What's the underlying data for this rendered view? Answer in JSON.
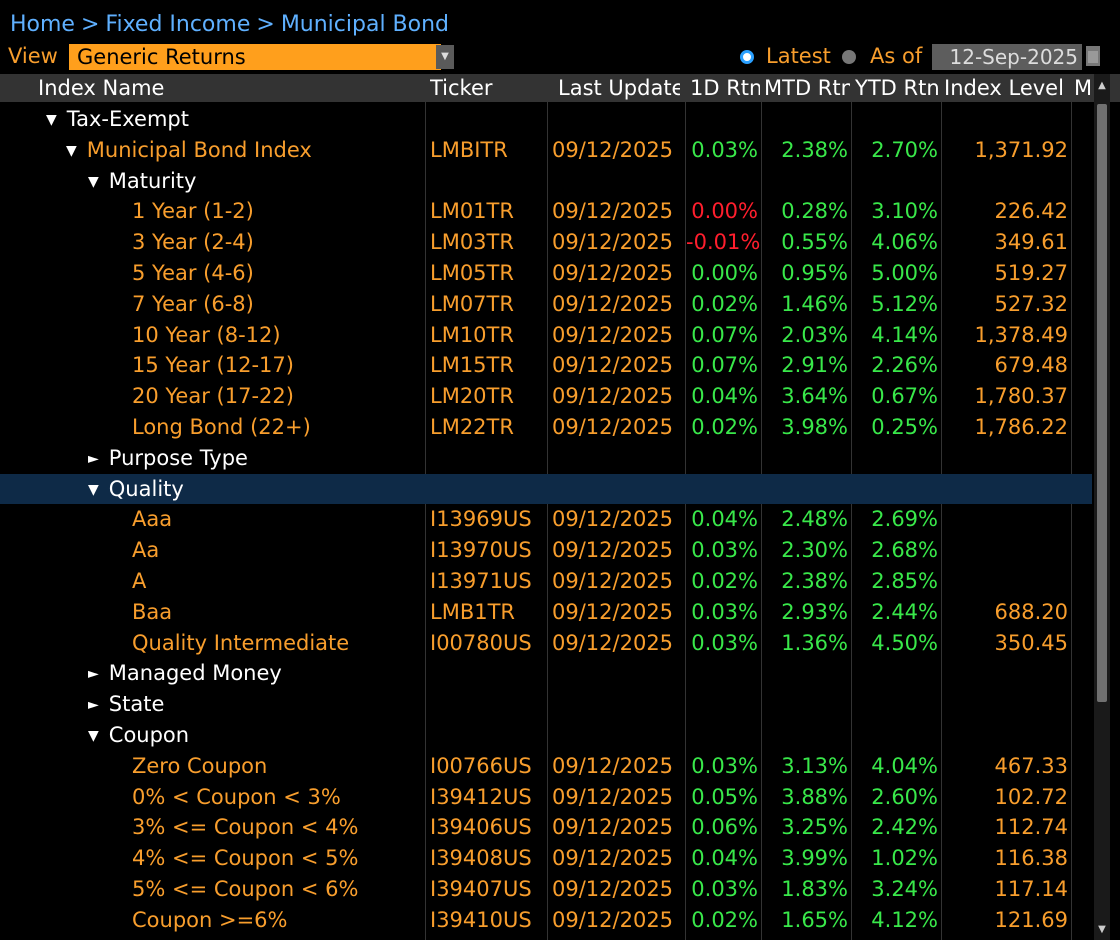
{
  "breadcrumb": {
    "home": "Home",
    "fixed_income": "Fixed Income",
    "municipal_bond": "Municipal Bond",
    "sep": ">"
  },
  "view": {
    "label": "View",
    "value": "Generic Returns",
    "latest_label": "Latest",
    "asof_label": "As of",
    "asof_date": "12-Sep-2025",
    "selected": "Latest"
  },
  "columns": [
    "Index Name",
    "Ticker",
    "Last Update",
    "1D Rtn",
    "MTD Rtn",
    "YTD Rtn",
    "Index Level",
    "M"
  ],
  "rows": [
    {
      "name": "Tax-Exempt",
      "tree": "expanded",
      "ticker": "",
      "date": "",
      "d1": "",
      "mtd": "",
      "ytd": "",
      "level": ""
    },
    {
      "name": "Municipal Bond Index",
      "tree": "expanded",
      "ticker": "LMBITR",
      "date": "09/12/2025",
      "d1": "0.03%",
      "mtd": "2.38%",
      "ytd": "2.70%",
      "level": "1,371.92"
    },
    {
      "name": "Maturity",
      "tree": "expanded",
      "ticker": "",
      "date": "",
      "d1": "",
      "mtd": "",
      "ytd": "",
      "level": ""
    },
    {
      "name": "1 Year (1-2)",
      "tree": "",
      "ticker": "LM01TR",
      "date": "09/12/2025",
      "d1": "0.00%",
      "mtd": "0.28%",
      "ytd": "3.10%",
      "level": "226.42"
    },
    {
      "name": "3 Year (2-4)",
      "tree": "",
      "ticker": "LM03TR",
      "date": "09/12/2025",
      "d1": "-0.01%",
      "mtd": "0.55%",
      "ytd": "4.06%",
      "level": "349.61"
    },
    {
      "name": "5 Year (4-6)",
      "tree": "",
      "ticker": "LM05TR",
      "date": "09/12/2025",
      "d1": "0.00%",
      "mtd": "0.95%",
      "ytd": "5.00%",
      "level": "519.27"
    },
    {
      "name": "7 Year (6-8)",
      "tree": "",
      "ticker": "LM07TR",
      "date": "09/12/2025",
      "d1": "0.02%",
      "mtd": "1.46%",
      "ytd": "5.12%",
      "level": "527.32"
    },
    {
      "name": "10 Year (8-12)",
      "tree": "",
      "ticker": "LM10TR",
      "date": "09/12/2025",
      "d1": "0.07%",
      "mtd": "2.03%",
      "ytd": "4.14%",
      "level": "1,378.49"
    },
    {
      "name": "15 Year (12-17)",
      "tree": "",
      "ticker": "LM15TR",
      "date": "09/12/2025",
      "d1": "0.07%",
      "mtd": "2.91%",
      "ytd": "2.26%",
      "level": "679.48"
    },
    {
      "name": "20 Year (17-22)",
      "tree": "",
      "ticker": "LM20TR",
      "date": "09/12/2025",
      "d1": "0.04%",
      "mtd": "3.64%",
      "ytd": "0.67%",
      "level": "1,780.37"
    },
    {
      "name": "Long Bond (22+)",
      "tree": "",
      "ticker": "LM22TR",
      "date": "09/12/2025",
      "d1": "0.02%",
      "mtd": "3.98%",
      "ytd": "0.25%",
      "level": "1,786.22"
    },
    {
      "name": "Purpose Type",
      "tree": "collapsed",
      "ticker": "",
      "date": "",
      "d1": "",
      "mtd": "",
      "ytd": "",
      "level": ""
    },
    {
      "name": "Quality",
      "tree": "expanded",
      "selected": true,
      "ticker": "",
      "date": "",
      "d1": "",
      "mtd": "",
      "ytd": "",
      "level": ""
    },
    {
      "name": "Aaa",
      "tree": "",
      "ticker": "I13969US",
      "date": "09/12/2025",
      "d1": "0.04%",
      "mtd": "2.48%",
      "ytd": "2.69%",
      "level": ""
    },
    {
      "name": "Aa",
      "tree": "",
      "ticker": "I13970US",
      "date": "09/12/2025",
      "d1": "0.03%",
      "mtd": "2.30%",
      "ytd": "2.68%",
      "level": ""
    },
    {
      "name": "A",
      "tree": "",
      "ticker": "I13971US",
      "date": "09/12/2025",
      "d1": "0.02%",
      "mtd": "2.38%",
      "ytd": "2.85%",
      "level": ""
    },
    {
      "name": "Baa",
      "tree": "",
      "ticker": "LMB1TR",
      "date": "09/12/2025",
      "d1": "0.03%",
      "mtd": "2.93%",
      "ytd": "2.44%",
      "level": "688.20"
    },
    {
      "name": "Quality Intermediate",
      "tree": "",
      "ticker": "I00780US",
      "date": "09/12/2025",
      "d1": "0.03%",
      "mtd": "1.36%",
      "ytd": "4.50%",
      "level": "350.45"
    },
    {
      "name": "Managed Money",
      "tree": "collapsed",
      "ticker": "",
      "date": "",
      "d1": "",
      "mtd": "",
      "ytd": "",
      "level": ""
    },
    {
      "name": "State",
      "tree": "collapsed",
      "ticker": "",
      "date": "",
      "d1": "",
      "mtd": "",
      "ytd": "",
      "level": ""
    },
    {
      "name": "Coupon",
      "tree": "expanded",
      "ticker": "",
      "date": "",
      "d1": "",
      "mtd": "",
      "ytd": "",
      "level": ""
    },
    {
      "name": "Zero Coupon",
      "tree": "",
      "ticker": "I00766US",
      "date": "09/12/2025",
      "d1": "0.03%",
      "mtd": "3.13%",
      "ytd": "4.04%",
      "level": "467.33"
    },
    {
      "name": "0% < Coupon < 3%",
      "tree": "",
      "ticker": "I39412US",
      "date": "09/12/2025",
      "d1": "0.05%",
      "mtd": "3.88%",
      "ytd": "2.60%",
      "level": "102.72"
    },
    {
      "name": "3% <= Coupon < 4%",
      "tree": "",
      "ticker": "I39406US",
      "date": "09/12/2025",
      "d1": "0.06%",
      "mtd": "3.25%",
      "ytd": "2.42%",
      "level": "112.74"
    },
    {
      "name": "4% <= Coupon < 5%",
      "tree": "",
      "ticker": "I39408US",
      "date": "09/12/2025",
      "d1": "0.04%",
      "mtd": "3.99%",
      "ytd": "1.02%",
      "level": "116.38"
    },
    {
      "name": "5% <= Coupon < 6%",
      "tree": "",
      "ticker": "I39407US",
      "date": "09/12/2025",
      "d1": "0.03%",
      "mtd": "1.83%",
      "ytd": "3.24%",
      "level": "117.14"
    },
    {
      "name": "Coupon >=6%",
      "tree": "",
      "ticker": "I39410US",
      "date": "09/12/2025",
      "d1": "0.02%",
      "mtd": "1.65%",
      "ytd": "4.12%",
      "level": "121.69"
    }
  ],
  "icons": {
    "expanded": "triangle-down-icon",
    "collapsed": "triangle-right-icon",
    "dropdown": "dropdown-arrow-icon",
    "calendar": "calendar-icon"
  },
  "colors": {
    "positive": "#39e84a",
    "negative": "#ff1e2d",
    "orange": "#f89e2d",
    "link": "#5fb0ff",
    "selected_row": "#0e2a47",
    "header": "#333333"
  }
}
